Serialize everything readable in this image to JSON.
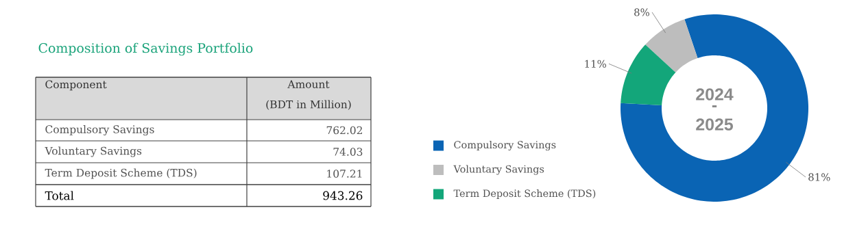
{
  "chart_data": {
    "type": "donut",
    "title": "Composition of Savings Portfolio",
    "categories": [
      "Compulsory Savings",
      "Voluntary Savings",
      "Term Deposit Scheme (TDS)"
    ],
    "values": [
      81,
      8,
      11
    ],
    "colors": [
      "#0a64b4",
      "#bdbdbd",
      "#13a67a"
    ],
    "value_labels": [
      "81%",
      "8%",
      "11%"
    ],
    "legend": "left",
    "annotations": [
      "Component",
      "Amount",
      "(BDT in Million)",
      "Total",
      "943.26",
      "2024",
      "-",
      "2025",
      "762.02",
      "74.03",
      "107.21"
    ]
  }
}
